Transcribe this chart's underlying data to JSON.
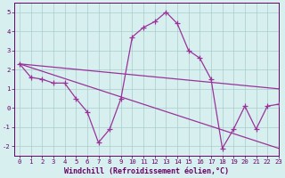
{
  "xlabel": "Windchill (Refroidissement éolien,°C)",
  "hours": [
    0,
    1,
    2,
    3,
    4,
    5,
    6,
    7,
    8,
    9,
    10,
    11,
    12,
    13,
    14,
    15,
    16,
    17,
    18,
    19,
    20,
    21,
    22,
    23
  ],
  "windchill": [
    2.3,
    1.6,
    1.5,
    1.3,
    1.3,
    0.5,
    -0.2,
    -1.8,
    -1.1,
    0.5,
    3.7,
    4.2,
    4.5,
    5.0,
    4.4,
    3.0,
    2.6,
    1.5,
    -2.1,
    -1.1,
    0.1,
    -1.1,
    0.1,
    0.2
  ],
  "trend1_x": [
    0,
    23
  ],
  "trend1_y": [
    2.3,
    1.0
  ],
  "trend2_x": [
    0,
    23
  ],
  "trend2_y": [
    2.3,
    -2.1
  ],
  "ylim": [
    -2.5,
    5.5
  ],
  "xlim": [
    -0.5,
    23
  ],
  "yticks": [
    -2,
    -1,
    0,
    1,
    2,
    3,
    4,
    5
  ],
  "xticks": [
    0,
    1,
    2,
    3,
    4,
    5,
    6,
    7,
    8,
    9,
    10,
    11,
    12,
    13,
    14,
    15,
    16,
    17,
    18,
    19,
    20,
    21,
    22,
    23
  ],
  "line_color": "#993399",
  "bg_color": "#d8efef",
  "grid_color": "#aacccc",
  "marker": "+",
  "markersize": 4,
  "linewidth": 0.9,
  "tick_fontsize": 5.2,
  "label_fontsize": 6.0
}
